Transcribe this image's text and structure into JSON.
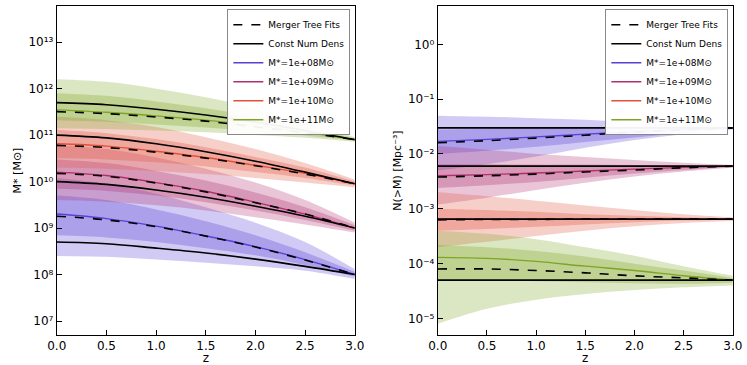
{
  "chart_data": [
    {
      "type": "line",
      "x_label": "z",
      "y_label": "M* [M⊙]",
      "log": "y",
      "grid": false,
      "legend": "upper right",
      "x": [
        0,
        0.5,
        1,
        1.5,
        2,
        2.5,
        3
      ],
      "xlim": [
        0,
        3
      ],
      "xticks": [
        {
          "value": 0,
          "label": "0.0"
        },
        {
          "value": 0.5,
          "label": "0.5"
        },
        {
          "value": 1,
          "label": "1.0"
        },
        {
          "value": 1.5,
          "label": "1.5"
        },
        {
          "value": 2,
          "label": "2.0"
        },
        {
          "value": 2.5,
          "label": "2.5"
        },
        {
          "value": 3,
          "label": "3.0"
        }
      ],
      "ylim": [
        5000000,
        60000000000000
      ],
      "yticks": [
        {
          "value": 10000000,
          "label": "10⁷"
        },
        {
          "value": 100000000,
          "label": "10⁸"
        },
        {
          "value": 1000000000,
          "label": "10⁹"
        },
        {
          "value": 10000000000,
          "label": "10¹⁰"
        },
        {
          "value": 100000000000,
          "label": "10¹¹"
        },
        {
          "value": 1000000000000,
          "label": "10¹²"
        },
        {
          "value": 10000000000000,
          "label": "10¹³"
        }
      ],
      "series": [
        {
          "name": "Merger Tree Fits",
          "color": "#000000",
          "line_style": "dashed",
          "values": [
            320000000000.0,
            290000000000.0,
            245000000000.0,
            200000000000.0,
            150000000000.0,
            112000000000.0,
            80000000000.0
          ]
        },
        {
          "name": "Merger Tree Fits",
          "color": "#000000",
          "line_style": "dashed",
          "values": [
            60000000000.0,
            54000000000.0,
            43000000000.0,
            32000000000.0,
            22000000000.0,
            14500000000.0,
            9000000000.0
          ]
        },
        {
          "name": "Merger Tree Fits",
          "color": "#000000",
          "line_style": "dashed",
          "values": [
            15000000000.0,
            13000000000.0,
            9300000000.0,
            6000000000.0,
            3500000000.0,
            2000000000.0,
            1000000000.0
          ]
        },
        {
          "name": "Merger Tree Fits",
          "color": "#000000",
          "line_style": "dashed",
          "values": [
            1800000000.0,
            1500000000.0,
            1070000000.0,
            670000000.0,
            390000000.0,
            205000000.0,
            100000000.0
          ]
        },
        {
          "name": "Const Num Dens",
          "color": "#000000",
          "line_style": "solid",
          "values": [
            500000000000.0,
            450000000000.0,
            360000000000.0,
            270000000000.0,
            190000000000.0,
            126000000000.0,
            80000000000.0
          ]
        },
        {
          "name": "Const Num Dens",
          "color": "#000000",
          "line_style": "solid",
          "values": [
            100000000000.0,
            87000000000.0,
            65000000000.0,
            44000000000.0,
            27500000000.0,
            16000000000.0,
            9000000000.0
          ]
        },
        {
          "name": "Const Num Dens",
          "color": "#000000",
          "line_style": "solid",
          "values": [
            10000000000.0,
            8700000000.0,
            6600000000.0,
            4600000000.0,
            2950000000.0,
            1800000000.0,
            1000000000.0
          ]
        },
        {
          "name": "Const Num Dens",
          "color": "#000000",
          "line_style": "solid",
          "values": [
            500000000.0,
            460000000.0,
            370000000.0,
            290000000.0,
            215000000.0,
            150000000.0,
            100000000.0
          ]
        },
        {
          "name": "M*=1e+08M⊙",
          "color": "#5b3fd6",
          "values": [
            2000000000.0,
            1600000000.0,
            1100000000.0,
            680000000.0,
            400000000.0,
            210000000.0,
            100000000.0
          ],
          "band_lower": [
            250000000.0,
            240000000.0,
            210000000.0,
            180000000.0,
            150000000.0,
            120000000.0,
            80000000.0
          ],
          "band_upper": [
            12000000000.0,
            9000000000.0,
            5500000000.0,
            2800000000.0,
            1300000000.0,
            500000000.0,
            130000000.0
          ],
          "inner_lower": [
            700000000.0,
            630000000.0,
            500000000.0,
            370000000.0,
            260000000.0,
            160000000.0,
            90000000.0
          ],
          "inner_upper": [
            5000000000.0,
            4000000000.0,
            2500000000.0,
            1400000000.0,
            700000000.0,
            300000000.0,
            115000000.0
          ]
        },
        {
          "name": "M*=1e+09M⊙",
          "color": "#b0306e",
          "values": [
            16000000000.0,
            13500000000.0,
            9500000000.0,
            6200000000.0,
            3600000000.0,
            2000000000.0,
            1000000000.0
          ],
          "band_lower": [
            4000000000.0,
            3700000000.0,
            3100000000.0,
            2400000000.0,
            1700000000.0,
            1200000000.0,
            800000000.0
          ],
          "band_upper": [
            60000000000.0,
            50000000000.0,
            33000000000.0,
            19000000000.0,
            9500000000.0,
            4000000000.0,
            1300000000.0
          ],
          "inner_lower": [
            7000000000.0,
            6300000000.0,
            5000000000.0,
            3600000000.0,
            2400000000.0,
            1500000000.0,
            880000000.0
          ],
          "inner_upper": [
            30000000000.0,
            25000000000.0,
            17000000000.0,
            10500000000.0,
            5800000000.0,
            2800000000.0,
            1150000000.0
          ]
        },
        {
          "name": "M*=1e+10M⊙",
          "color": "#e2513c",
          "values": [
            65000000000.0,
            58000000000.0,
            45000000000.0,
            33000000000.0,
            22500000000.0,
            15000000000.0,
            9000000000.0
          ],
          "band_lower": [
            20000000000.0,
            19000000000.0,
            17000000000.0,
            14500000000.0,
            12000000000.0,
            9500000000.0,
            7500000000.0
          ],
          "band_upper": [
            250000000000.0,
            210000000000.0,
            150000000000.0,
            90000000000.0,
            50000000000.0,
            25000000000.0,
            11000000000.0
          ],
          "inner_lower": [
            32000000000.0,
            30000000000.0,
            26000000000.0,
            21000000000.0,
            16000000000.0,
            12000000000.0,
            8200000000.0
          ],
          "inner_upper": [
            130000000000.0,
            110000000000.0,
            82000000000.0,
            55000000000.0,
            34000000000.0,
            20000000000.0,
            10000000000.0
          ]
        },
        {
          "name": "M*=1e+11M⊙",
          "color": "#7ea424",
          "values": [
            350000000000.0,
            310000000000.0,
            260000000000.0,
            210000000000.0,
            160000000000.0,
            115000000000.0,
            80000000000.0
          ],
          "band_lower": [
            140000000000.0,
            135000000000.0,
            125000000000.0,
            115000000000.0,
            100000000000.0,
            88000000000.0,
            72000000000.0
          ],
          "band_upper": [
            1600000000000.0,
            1400000000000.0,
            1000000000000.0,
            650000000000.0,
            380000000000.0,
            190000000000.0,
            90000000000.0
          ],
          "inner_lower": [
            210000000000.0,
            195000000000.0,
            170000000000.0,
            145000000000.0,
            120000000000.0,
            98000000000.0,
            76000000000.0
          ],
          "inner_upper": [
            800000000000.0,
            700000000000.0,
            530000000000.0,
            380000000000.0,
            250000000000.0,
            150000000000.0,
            85000000000.0
          ]
        }
      ]
    },
    {
      "type": "line",
      "x_label": "z",
      "y_label": "N(>M) [Mpc⁻³]",
      "log": "y",
      "grid": false,
      "legend": "upper right",
      "x": [
        0,
        0.5,
        1,
        1.5,
        2,
        2.5,
        3
      ],
      "xlim": [
        0,
        3
      ],
      "xticks": [
        {
          "value": 0,
          "label": "0.0"
        },
        {
          "value": 0.5,
          "label": "0.5"
        },
        {
          "value": 1,
          "label": "1.0"
        },
        {
          "value": 1.5,
          "label": "1.5"
        },
        {
          "value": 2,
          "label": "2.0"
        },
        {
          "value": 2.5,
          "label": "2.5"
        },
        {
          "value": 3,
          "label": "3.0"
        }
      ],
      "ylim": [
        5e-06,
        5
      ],
      "yticks": [
        {
          "value": 1e-05,
          "label": "10⁻⁵"
        },
        {
          "value": 0.0001,
          "label": "10⁻⁴"
        },
        {
          "value": 0.001,
          "label": "10⁻³"
        },
        {
          "value": 0.01,
          "label": "10⁻²"
        },
        {
          "value": 0.1,
          "label": "10⁻¹"
        },
        {
          "value": 1,
          "label": "10⁰"
        }
      ],
      "series": [
        {
          "name": "Merger Tree Fits",
          "color": "#000000",
          "line_style": "dashed",
          "values": [
            0.016,
            0.0175,
            0.0195,
            0.022,
            0.025,
            0.0275,
            0.03
          ]
        },
        {
          "name": "Merger Tree Fits",
          "color": "#000000",
          "line_style": "dashed",
          "values": [
            0.0038,
            0.004,
            0.0043,
            0.0047,
            0.0051,
            0.0056,
            0.006
          ]
        },
        {
          "name": "Merger Tree Fits",
          "color": "#000000",
          "line_style": "dashed",
          "values": [
            0.00063,
            0.00064,
            0.00064,
            0.00065,
            0.00065,
            0.00065,
            0.00065
          ]
        },
        {
          "name": "Merger Tree Fits",
          "color": "#000000",
          "line_style": "dashed",
          "values": [
            8e-05,
            8e-05,
            7.5e-05,
            6.8e-05,
            6e-05,
            5.5e-05,
            5e-05
          ]
        },
        {
          "name": "Const Num Dens",
          "color": "#000000",
          "line_style": "solid",
          "values": [
            0.03,
            0.03,
            0.03,
            0.03,
            0.03,
            0.03,
            0.03
          ]
        },
        {
          "name": "Const Num Dens",
          "color": "#000000",
          "line_style": "solid",
          "values": [
            0.006,
            0.006,
            0.006,
            0.006,
            0.006,
            0.006,
            0.006
          ]
        },
        {
          "name": "Const Num Dens",
          "color": "#000000",
          "line_style": "solid",
          "values": [
            0.00065,
            0.00065,
            0.00065,
            0.00065,
            0.00065,
            0.00065,
            0.00065
          ]
        },
        {
          "name": "Const Num Dens",
          "color": "#000000",
          "line_style": "solid",
          "values": [
            5e-05,
            5e-05,
            5e-05,
            5e-05,
            5e-05,
            5e-05,
            5e-05
          ]
        },
        {
          "name": "M*=1e+08M⊙",
          "color": "#5b3fd6",
          "values": [
            0.017,
            0.0185,
            0.0205,
            0.023,
            0.0255,
            0.028,
            0.03
          ],
          "band_lower": [
            0.005,
            0.0065,
            0.009,
            0.013,
            0.018,
            0.023,
            0.028
          ],
          "band_upper": [
            0.05,
            0.048,
            0.045,
            0.042,
            0.038,
            0.034,
            0.031
          ],
          "inner_lower": [
            0.01,
            0.0115,
            0.0135,
            0.0165,
            0.02,
            0.0245,
            0.029
          ],
          "inner_upper": [
            0.028,
            0.029,
            0.03,
            0.0305,
            0.031,
            0.031,
            0.0305
          ]
        },
        {
          "name": "M*=1e+09M⊙",
          "color": "#b0306e",
          "values": [
            0.004,
            0.0042,
            0.0045,
            0.0049,
            0.0053,
            0.0057,
            0.006
          ],
          "band_lower": [
            0.0012,
            0.0016,
            0.0022,
            0.003,
            0.0039,
            0.0048,
            0.0056
          ],
          "band_upper": [
            0.014,
            0.012,
            0.01,
            0.0088,
            0.0078,
            0.0069,
            0.0063
          ],
          "inner_lower": [
            0.0024,
            0.0027,
            0.0031,
            0.0037,
            0.0044,
            0.0051,
            0.0058
          ],
          "inner_upper": [
            0.0065,
            0.0065,
            0.0064,
            0.0064,
            0.0063,
            0.0062,
            0.0061
          ]
        },
        {
          "name": "M*=1e+10M⊙",
          "color": "#e2513c",
          "values": [
            0.00065,
            0.00065,
            0.00065,
            0.00065,
            0.00065,
            0.00065,
            0.00065
          ],
          "band_lower": [
            0.0002,
            0.00025,
            0.00032,
            0.0004,
            0.00048,
            0.00055,
            0.0006
          ],
          "band_upper": [
            0.002,
            0.0017,
            0.0014,
            0.00115,
            0.00095,
            0.0008,
            0.0007
          ],
          "inner_lower": [
            0.0004,
            0.00043,
            0.00047,
            0.00052,
            0.00057,
            0.00061,
            0.00063
          ],
          "inner_upper": [
            0.001,
            0.00095,
            0.00088,
            0.0008,
            0.00075,
            0.0007,
            0.00067
          ]
        },
        {
          "name": "M*=1e+11M⊙",
          "color": "#7ea424",
          "values": [
            0.00013,
            0.000125,
            0.00011,
            9e-05,
            7.5e-05,
            6e-05,
            5e-05
          ],
          "band_lower": [
            8e-06,
            1.5e-05,
            2.2e-05,
            2.8e-05,
            3.3e-05,
            3.7e-05,
            4e-05
          ],
          "band_upper": [
            0.0004,
            0.00035,
            0.00028,
            0.0002,
            0.00014,
            9e-05,
            6e-05
          ],
          "inner_lower": [
            5e-05,
            5e-05,
            4.8e-05,
            4.6e-05,
            4.4e-05,
            4.3e-05,
            4.5e-05
          ],
          "inner_upper": [
            0.00022,
            0.0002,
            0.00017,
            0.000135,
            0.0001,
            7.5e-05,
            5.5e-05
          ]
        }
      ]
    }
  ]
}
